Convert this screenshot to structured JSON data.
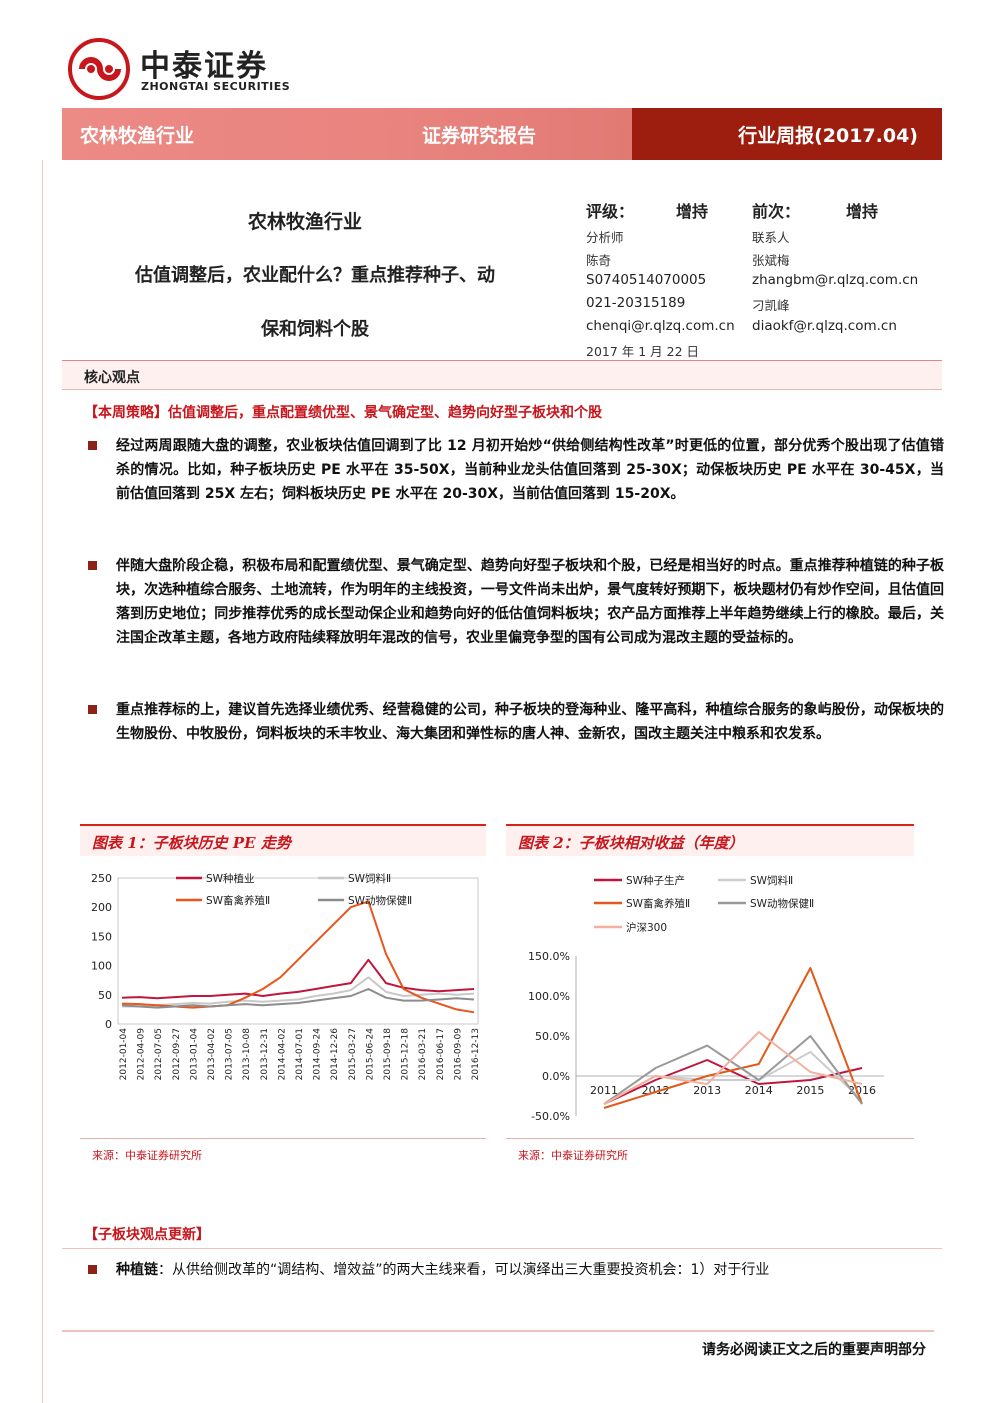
{
  "header": {
    "logo_cn": "中泰证券",
    "logo_en": "ZHONGTAI SECURITIES",
    "banner_sector": "农林牧渔行业",
    "banner_type": "证券研究报告",
    "banner_period": "行业周报(2017.04)"
  },
  "title": {
    "sector": "农林牧渔行业",
    "line1": "估值调整后，农业配什么？重点推荐种子、动",
    "line2": "保和饲料个股"
  },
  "rating": {
    "label": "评级：",
    "value": "增持",
    "prev_label": "前次：",
    "prev_value": "增持"
  },
  "analyst": {
    "label": "分析师",
    "name": "陈奇",
    "cert": "S0740514070005",
    "phone": "021-20315189",
    "email": "chenqi@r.qlzq.com.cn",
    "date": "2017 年 1 月 22 日"
  },
  "contact": {
    "label": "联系人",
    "name1": "张斌梅",
    "email1": "zhangbm@r.qlzq.com.cn",
    "name2": "刁凯峰",
    "email2": "diaokf@r.qlzq.com.cn"
  },
  "core": {
    "label": "核心观点",
    "strategy": "【本周策略】估值调整后，重点配置绩优型、景气确定型、趋势向好型子板块和个股",
    "paragraphs": [
      "经过两周跟随大盘的调整，农业板块估值回调到了比 12 月初开始炒“供给侧结构性改革”时更低的位置，部分优秀个股出现了估值错杀的情况。比如，种子板块历史 PE 水平在 35-50X，当前种业龙头估值回落到 25-30X；动保板块历史 PE 水平在 30-45X，当前估值回落到 25X 左右；饲料板块历史 PE 水平在 20-30X，当前估值回落到 15-20X。",
      "伴随大盘阶段企稳，积极布局和配置绩优型、景气确定型、趋势向好型子板块和个股，已经是相当好的时点。重点推荐种植链的种子板块，次选种植综合服务、土地流转，作为明年的主线投资，一号文件尚未出炉，景气度转好预期下，板块题材仍有炒作空间，且估值回落到历史地位；同步推荐优秀的成长型动保企业和趋势向好的低估值饲料板块；农产品方面推荐上半年趋势继续上行的橡胶。最后，关注国企改革主题，各地方政府陆续释放明年混改的信号，农业里偏竞争型的国有公司成为混改主题的受益标的。",
      "重点推荐标的上，建议首先选择业绩优秀、经营稳健的公司，种子板块的登海种业、隆平高科，种植综合服务的象屿股份，动保板块的生物股份、中牧股份，饲料板块的禾丰牧业、海大集团和弹性标的唐人神、金新农，国改主题关注中粮系和农发系。"
    ]
  },
  "chart1": {
    "title": "图表 1：子板块历史 PE 走势",
    "source": "来源：中泰证券研究所"
  },
  "chart2": {
    "title": "图表 2：子板块相对收益（年度）",
    "source": "来源：中泰证券研究所"
  },
  "chart_data": [
    {
      "type": "line",
      "title": "图表 1：子板块历史 PE 走势",
      "x": [
        "2012-01-04",
        "2012-04-09",
        "2012-07-05",
        "2012-09-27",
        "2013-01-04",
        "2013-04-02",
        "2013-07-05",
        "2013-10-08",
        "2013-12-31",
        "2014-04-02",
        "2014-07-01",
        "2014-09-24",
        "2014-12-26",
        "2015-03-27",
        "2015-06-24",
        "2015-09-18",
        "2015-12-18",
        "2016-03-21",
        "2016-06-17",
        "2016-09-09",
        "2016-12-13"
      ],
      "ylim": [
        0,
        250
      ],
      "yticks": [
        0,
        50,
        100,
        150,
        200,
        250
      ],
      "legend_position": "top",
      "series": [
        {
          "name": "SW种植业",
          "color": "#c0163e",
          "values": [
            45,
            46,
            44,
            46,
            48,
            48,
            50,
            52,
            48,
            52,
            55,
            60,
            65,
            70,
            110,
            70,
            62,
            58,
            56,
            58,
            60
          ]
        },
        {
          "name": "SW饲料Ⅱ",
          "color": "#c8c8c8",
          "values": [
            30,
            30,
            32,
            34,
            36,
            35,
            38,
            40,
            38,
            40,
            42,
            48,
            52,
            58,
            80,
            55,
            48,
            50,
            52,
            50,
            52
          ]
        },
        {
          "name": "SW畜禽养殖Ⅱ",
          "color": "#e8561d",
          "values": [
            35,
            34,
            32,
            30,
            28,
            30,
            32,
            45,
            60,
            80,
            110,
            140,
            170,
            200,
            210,
            120,
            60,
            45,
            35,
            25,
            20
          ]
        },
        {
          "name": "SW动物保健Ⅱ",
          "color": "#8c8c8c",
          "values": [
            32,
            30,
            28,
            30,
            32,
            30,
            32,
            34,
            32,
            34,
            36,
            40,
            44,
            48,
            60,
            45,
            40,
            40,
            42,
            44,
            42
          ]
        }
      ]
    },
    {
      "type": "line",
      "title": "图表 2：子板块相对收益（年度）",
      "x": [
        "2011",
        "2012",
        "2013",
        "2014",
        "2015",
        "2016"
      ],
      "ylim": [
        -50,
        150
      ],
      "yticks": [
        "-50.0%",
        "0.0%",
        "50.0%",
        "100.0%",
        "150.0%"
      ],
      "legend_position": "top",
      "series": [
        {
          "name": "SW种子生产",
          "color": "#c0163e",
          "values": [
            -35,
            -5,
            20,
            -10,
            -5,
            10
          ]
        },
        {
          "name": "SW饲料Ⅱ",
          "color": "#cccccc",
          "values": [
            -35,
            0,
            -5,
            -5,
            30,
            -30
          ]
        },
        {
          "name": "SW畜禽养殖Ⅱ",
          "color": "#e05a1a",
          "values": [
            -40,
            -20,
            0,
            15,
            135,
            -35
          ]
        },
        {
          "name": "SW动物保健Ⅱ",
          "color": "#999999",
          "values": [
            -35,
            10,
            38,
            -5,
            50,
            -35
          ]
        },
        {
          "name": "沪深300",
          "color": "#f2b0a0",
          "values": [
            -35,
            0,
            -10,
            55,
            5,
            -10
          ]
        }
      ]
    }
  ],
  "sub": {
    "title": "【子板块观点更新】",
    "para_bold": "种植链",
    "para_rest": "：从供给侧改革的“调结构、增效益”的两大主线来看，可以演绎出三大重要投资机会：1）对于行业"
  },
  "footer": {
    "note": "请务必阅读正文之后的重要声明部分"
  },
  "colors": {
    "brand_red": "#9d1e0f",
    "banner_pink": "#ec8a86",
    "accent": "#c8161d"
  }
}
